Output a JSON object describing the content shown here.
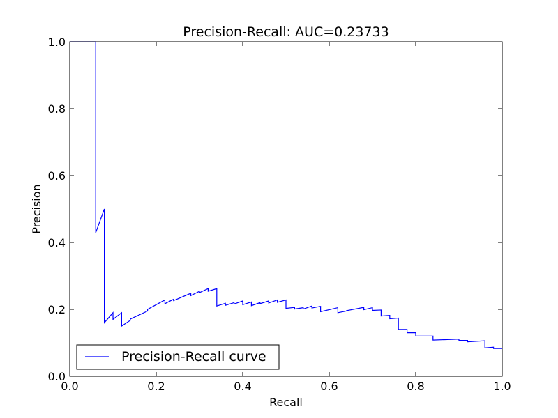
{
  "chart_data": {
    "type": "line",
    "title": "Precision-Recall: AUC=0.23733",
    "xlabel": "Recall",
    "ylabel": "Precision",
    "xlim": [
      0.0,
      1.0
    ],
    "ylim": [
      0.0,
      1.0
    ],
    "x_ticks": [
      "0.0",
      "0.2",
      "0.4",
      "0.6",
      "0.8",
      "1.0"
    ],
    "y_ticks": [
      "0.0",
      "0.2",
      "0.4",
      "0.6",
      "0.8",
      "1.0"
    ],
    "grid": false,
    "legend_position": "lower-left",
    "series": [
      {
        "name": "Precision-Recall curve",
        "color": "#0000ff",
        "x": [
          0.0,
          0.06,
          0.06,
          0.08,
          0.08,
          0.1,
          0.1,
          0.12,
          0.12,
          0.14,
          0.14,
          0.18,
          0.18,
          0.22,
          0.22,
          0.24,
          0.24,
          0.28,
          0.28,
          0.3,
          0.3,
          0.32,
          0.32,
          0.34,
          0.34,
          0.36,
          0.36,
          0.38,
          0.38,
          0.4,
          0.4,
          0.42,
          0.42,
          0.44,
          0.44,
          0.46,
          0.46,
          0.48,
          0.48,
          0.5,
          0.5,
          0.52,
          0.52,
          0.54,
          0.54,
          0.56,
          0.56,
          0.58,
          0.58,
          0.62,
          0.62,
          0.64,
          0.64,
          0.68,
          0.68,
          0.7,
          0.7,
          0.72,
          0.72,
          0.74,
          0.74,
          0.76,
          0.76,
          0.78,
          0.78,
          0.8,
          0.8,
          0.84,
          0.84,
          0.9,
          0.9,
          0.92,
          0.92,
          0.96,
          0.96,
          0.98,
          0.98,
          1.0
        ],
        "y": [
          1.0,
          1.0,
          0.429,
          0.5,
          0.16,
          0.19,
          0.17,
          0.19,
          0.15,
          0.167,
          0.171,
          0.195,
          0.2,
          0.228,
          0.217,
          0.23,
          0.226,
          0.248,
          0.241,
          0.254,
          0.25,
          0.262,
          0.254,
          0.262,
          0.21,
          0.218,
          0.212,
          0.22,
          0.216,
          0.225,
          0.214,
          0.222,
          0.211,
          0.22,
          0.217,
          0.225,
          0.219,
          0.228,
          0.221,
          0.228,
          0.203,
          0.206,
          0.201,
          0.205,
          0.201,
          0.21,
          0.204,
          0.209,
          0.193,
          0.205,
          0.19,
          0.195,
          0.196,
          0.206,
          0.199,
          0.205,
          0.197,
          0.198,
          0.18,
          0.182,
          0.172,
          0.174,
          0.14,
          0.14,
          0.13,
          0.13,
          0.12,
          0.12,
          0.108,
          0.111,
          0.107,
          0.107,
          0.103,
          0.106,
          0.085,
          0.087,
          0.083,
          0.083
        ]
      }
    ]
  }
}
